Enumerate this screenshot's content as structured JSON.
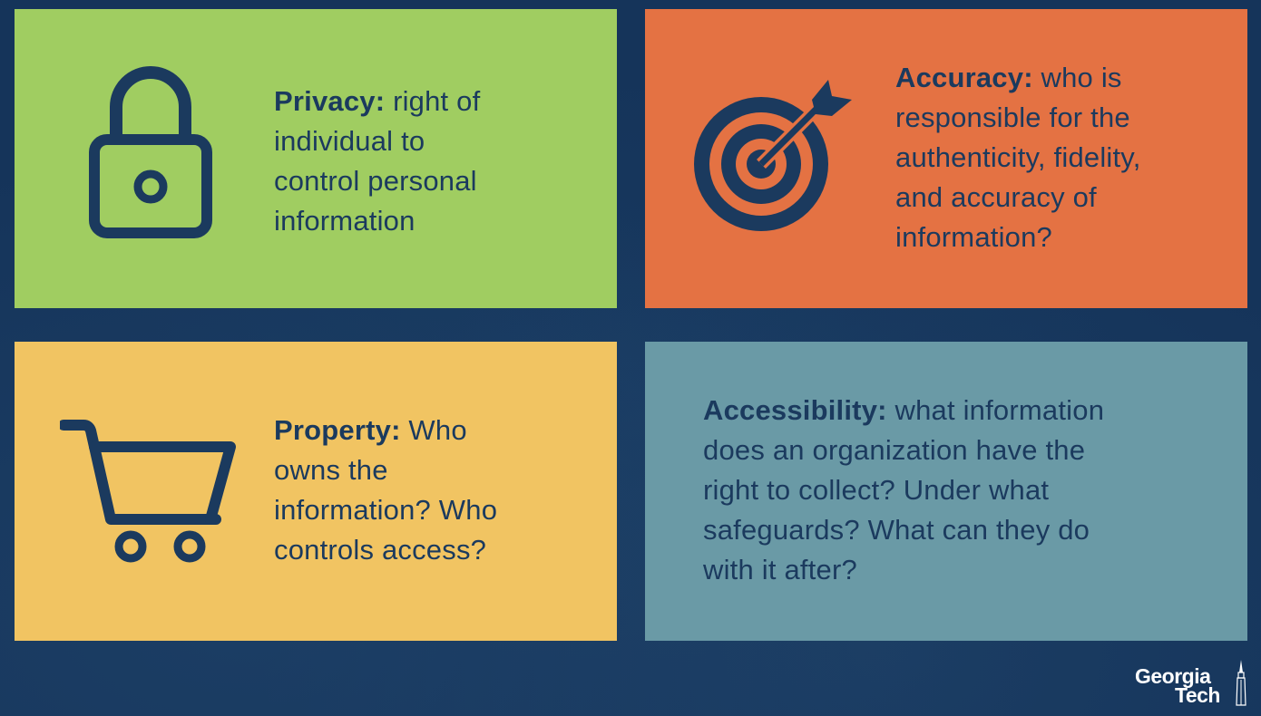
{
  "cards": {
    "privacy": {
      "term": "Privacy:",
      "line1_rest": " right of",
      "line2": "individual to",
      "line3": "control personal",
      "line4": "information",
      "icon": "padlock-icon",
      "color": "#a0cd61"
    },
    "accuracy": {
      "term": "Accuracy:",
      "line1_rest": " who is",
      "line2": "responsible for the",
      "line3": "authenticity, fidelity,",
      "line4": "and accuracy of",
      "line5": "information?",
      "icon": "target-icon",
      "color": "#e47243"
    },
    "property": {
      "term": "Property:",
      "line1_rest": " Who",
      "line2": "owns the",
      "line3": "information?  Who",
      "line4": "controls access?",
      "icon": "shopping-cart-icon",
      "color": "#f1c462"
    },
    "accessibility": {
      "term": "Accessibility:",
      "line1_rest": " what information",
      "line2": "does an organization have the",
      "line3": "right to collect?  Under what",
      "line4": "safeguards? What can they do",
      "line5": "with it after?",
      "color": "#6a9aa6"
    }
  },
  "logo": {
    "line1": "Georgia",
    "line2": "Tech",
    "icon": "tower-icon"
  },
  "colors": {
    "background": "#15345a",
    "text": "#1b3a5e",
    "icon": "#1b3a5e"
  }
}
